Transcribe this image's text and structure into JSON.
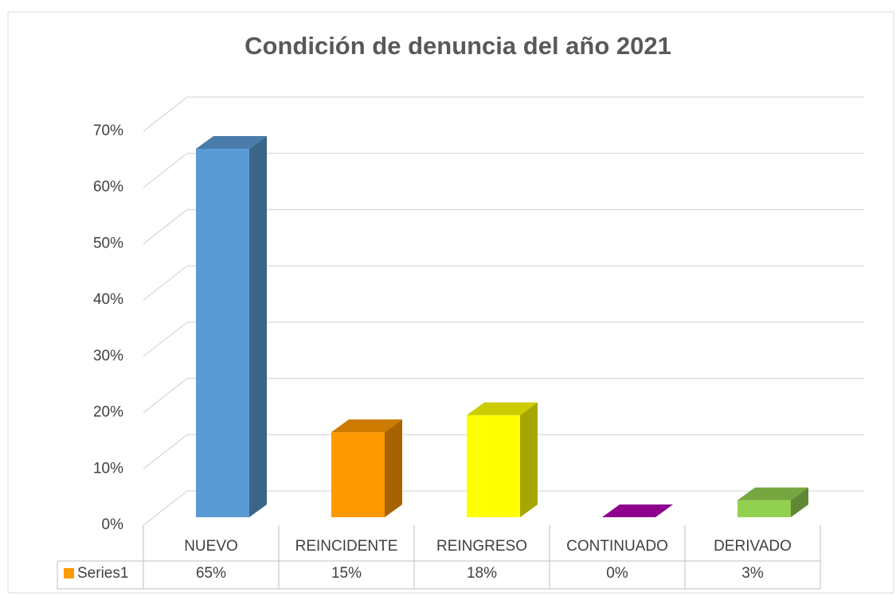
{
  "chart_data": {
    "type": "bar3d",
    "title": "Condición de denuncia del año 2021",
    "categories": [
      "NUEVO",
      "REINCIDENTE",
      "REINGRESO",
      "CONTINUADO",
      "DERIVADO"
    ],
    "series": [
      {
        "name": "Series1",
        "color": "#ff9900",
        "colors": [
          "#5b9bd5",
          "#ff9900",
          "#ffff00",
          "#b000b0",
          "#92d050"
        ],
        "values": [
          65,
          15,
          18,
          0,
          3
        ],
        "value_labels": [
          "65%",
          "15%",
          "18%",
          "0%",
          "3%"
        ]
      }
    ],
    "ylim": [
      0,
      70
    ],
    "yticks": [
      {
        "value": 0,
        "label": "0%"
      },
      {
        "value": 10,
        "label": "10%"
      },
      {
        "value": 20,
        "label": "20%"
      },
      {
        "value": 30,
        "label": "30%"
      },
      {
        "value": 40,
        "label": "40%"
      },
      {
        "value": 50,
        "label": "50%"
      },
      {
        "value": 60,
        "label": "60%"
      },
      {
        "value": 70,
        "label": "70%"
      }
    ],
    "grid": true,
    "data_table": true
  }
}
